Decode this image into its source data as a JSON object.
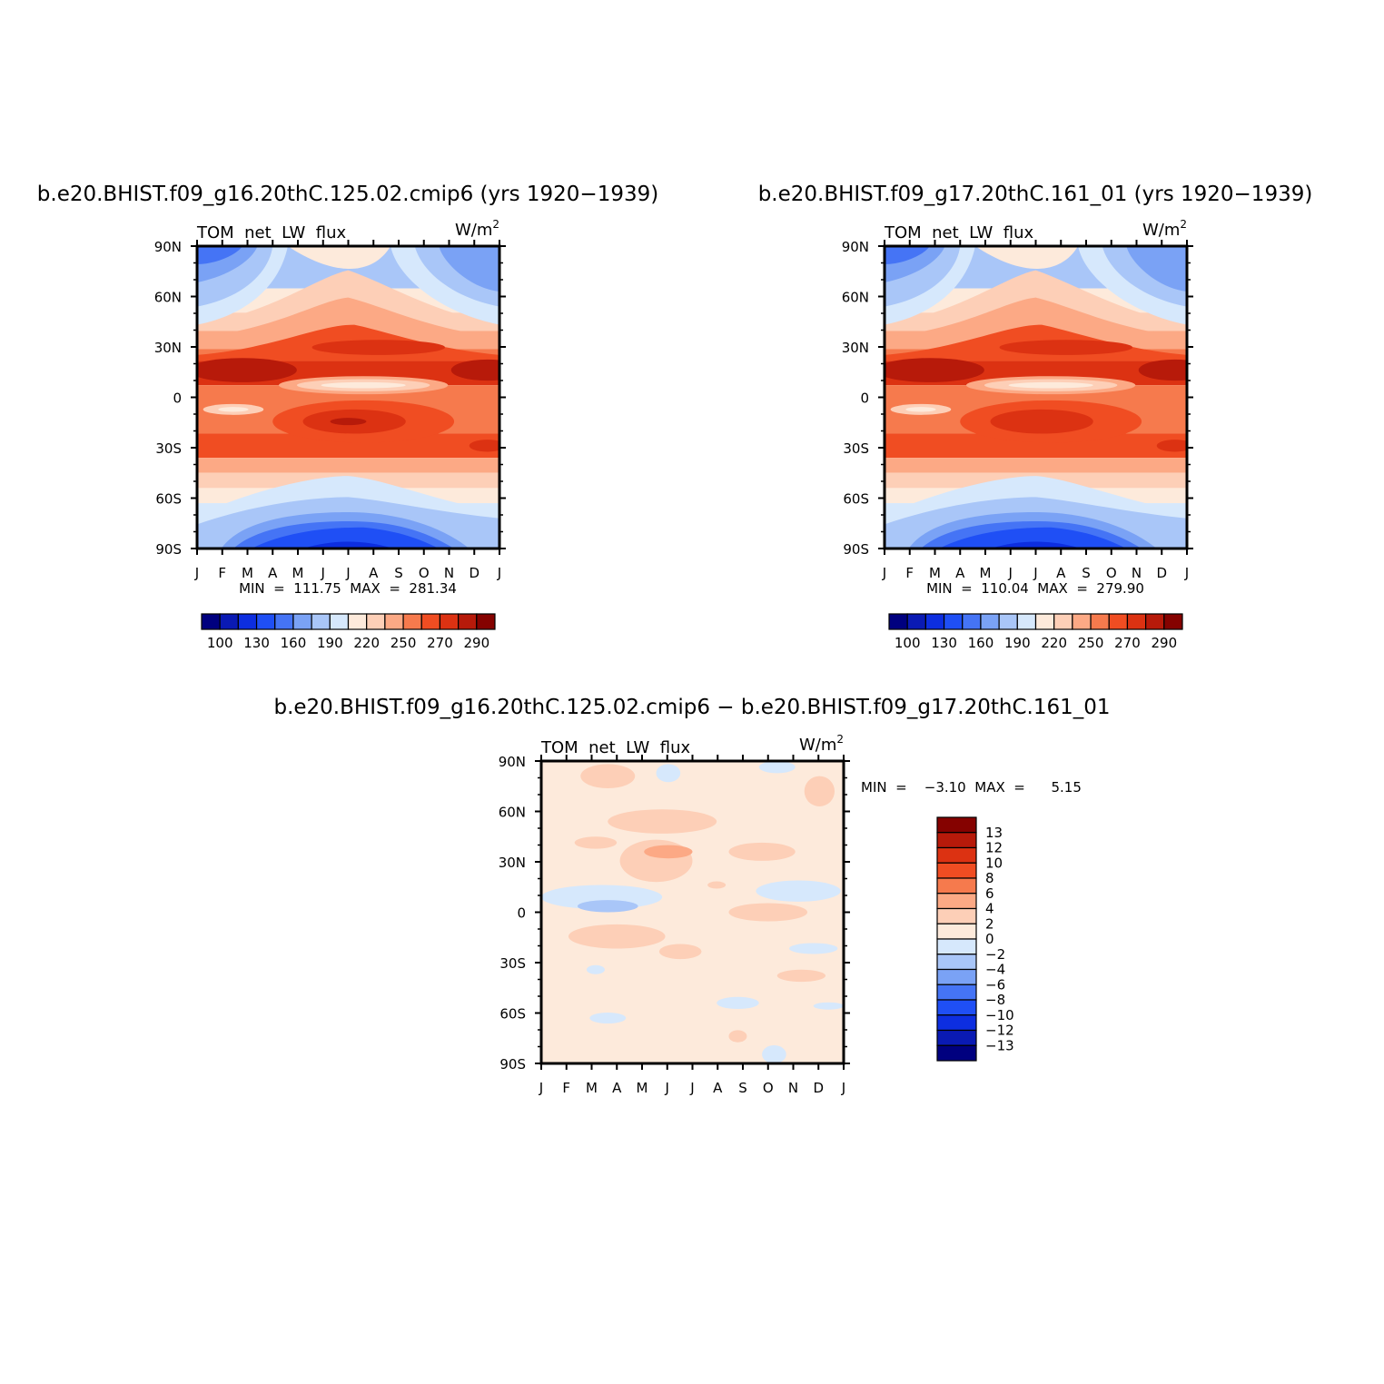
{
  "months": [
    "J",
    "F",
    "M",
    "A",
    "M",
    "J",
    "J",
    "A",
    "S",
    "O",
    "N",
    "D",
    "J"
  ],
  "lat_labels": [
    "90N",
    "60N",
    "30N",
    "0",
    "30S",
    "60S",
    "90S"
  ],
  "variable_label": "TOM  net  LW  flux",
  "units_label": "W/m",
  "units_superscript": "2",
  "palette": {
    "abs": [
      "#00007f",
      "#0a1ab4",
      "#0d2ee0",
      "#1f4ff5",
      "#4574f5",
      "#7aa2f5",
      "#a9c6f8",
      "#d6e8fc",
      "#fdeadb",
      "#fdcfb7",
      "#fca985",
      "#f67a4d",
      "#f04d22",
      "#dc3212",
      "#b71a0a",
      "#850200"
    ],
    "diff": [
      "#00007f",
      "#0a1ab4",
      "#0d2ee0",
      "#1f4ff5",
      "#4574f5",
      "#7aa2f5",
      "#a9c6f8",
      "#d6e8fc",
      "#fdeadb",
      "#fdcfb7",
      "#fca985",
      "#f67a4d",
      "#f04d22",
      "#dc3212",
      "#b71a0a",
      "#850200"
    ]
  },
  "panels": [
    {
      "title": "b.e20.BHIST.f09_g16.20thC.125.02.cmip6  (yrs  1920−1939)",
      "stats": "MIN  =  111.75  MAX  =  281.34",
      "colorbar_labels": [
        "100",
        "130",
        "160",
        "190",
        "220",
        "250",
        "270",
        "290"
      ]
    },
    {
      "title": "b.e20.BHIST.f09_g17.20thC.161_01  (yrs  1920−1939)",
      "stats": "MIN  =  110.04  MAX  =  279.90",
      "colorbar_labels": [
        "100",
        "130",
        "160",
        "190",
        "220",
        "250",
        "270",
        "290"
      ]
    },
    {
      "title": "b.e20.BHIST.f09_g16.20thC.125.02.cmip6  −  b.e20.BHIST.f09_g17.20thC.161_01",
      "stats": "MIN  =    −3.10  MAX  =      5.15",
      "colorbar_labels": [
        "13",
        "12",
        "10",
        "8",
        "6",
        "4",
        "2",
        "0",
        "−2",
        "−4",
        "−6",
        "−8",
        "−10",
        "−12",
        "−13"
      ]
    }
  ],
  "chart_data": [
    {
      "type": "heatmap",
      "title": "b.e20.BHIST.f09_g16.20thC.125.02.cmip6  (yrs  1920−1939)",
      "subtitle": "TOM  net  LW  flux",
      "units": "W/m2",
      "x": [
        "J",
        "F",
        "M",
        "A",
        "M",
        "J",
        "J",
        "A",
        "S",
        "O",
        "N",
        "D",
        "J"
      ],
      "y": [
        90,
        60,
        30,
        0,
        -30,
        -60,
        -90
      ],
      "ylim": [
        -90,
        90
      ],
      "contour_levels": [
        100,
        110,
        120,
        130,
        140,
        150,
        160,
        170,
        180,
        190,
        200,
        210,
        220,
        230,
        240,
        250,
        260,
        270,
        280,
        290
      ],
      "min": 111.75,
      "max": 281.34
    },
    {
      "type": "heatmap",
      "title": "b.e20.BHIST.f09_g17.20thC.161_01  (yrs  1920−1939)",
      "subtitle": "TOM  net  LW  flux",
      "units": "W/m2",
      "x": [
        "J",
        "F",
        "M",
        "A",
        "M",
        "J",
        "J",
        "A",
        "S",
        "O",
        "N",
        "D",
        "J"
      ],
      "y": [
        90,
        60,
        30,
        0,
        -30,
        -60,
        -90
      ],
      "ylim": [
        -90,
        90
      ],
      "contour_levels": [
        100,
        110,
        120,
        130,
        140,
        150,
        160,
        170,
        180,
        190,
        200,
        210,
        220,
        230,
        240,
        250,
        260,
        270,
        280,
        290
      ],
      "min": 110.04,
      "max": 279.9
    },
    {
      "type": "heatmap",
      "title": "b.e20.BHIST.f09_g16.20thC.125.02.cmip6  −  b.e20.BHIST.f09_g17.20thC.161_01",
      "subtitle": "TOM  net  LW  flux",
      "units": "W/m2",
      "x": [
        "J",
        "F",
        "M",
        "A",
        "M",
        "J",
        "J",
        "A",
        "S",
        "O",
        "N",
        "D",
        "J"
      ],
      "y": [
        90,
        60,
        30,
        0,
        -30,
        -60,
        -90
      ],
      "ylim": [
        -90,
        90
      ],
      "contour_levels": [
        -13,
        -12,
        -10,
        -8,
        -6,
        -4,
        -2,
        0,
        2,
        4,
        6,
        8,
        10,
        12,
        13
      ],
      "min": -3.1,
      "max": 5.15
    }
  ]
}
